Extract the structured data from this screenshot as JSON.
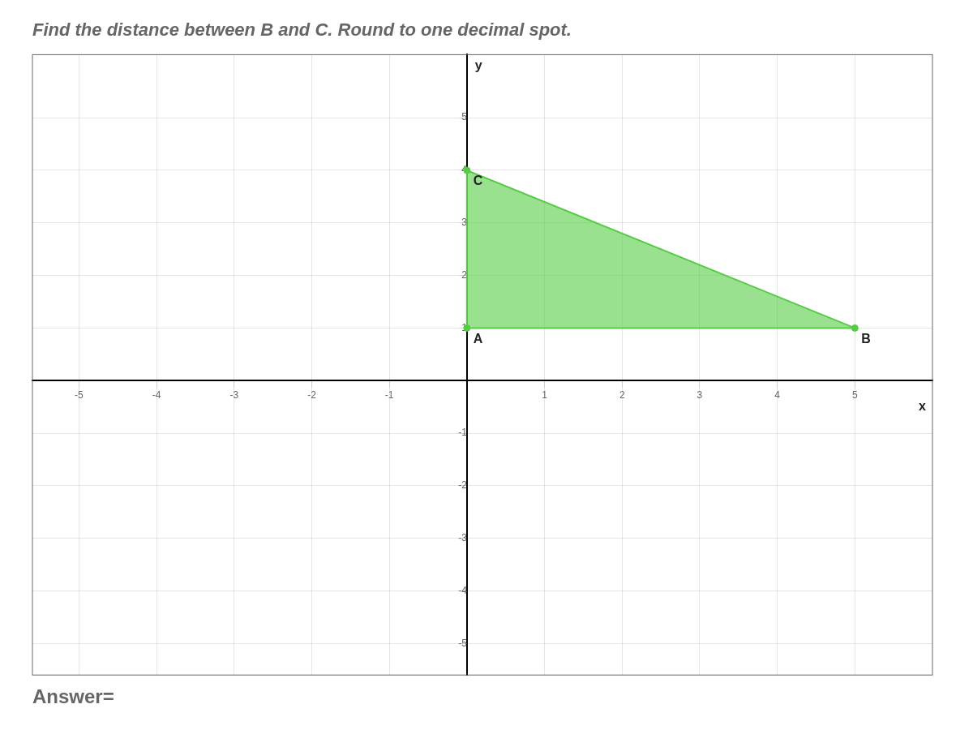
{
  "chart_data": {
    "type": "polygon",
    "title": "Find the distance between B and C. Round to one decimal spot.",
    "subtitle": "Answer=",
    "x_label": "x",
    "y_label": "y",
    "x": [
      0,
      5,
      0
    ],
    "values": [
      1,
      1,
      4
    ],
    "color": "#55cc44",
    "annotations": [
      {
        "text": "A",
        "x": 0,
        "y": 1
      },
      {
        "text": "B",
        "x": 5,
        "y": 1
      },
      {
        "text": "C",
        "x": 0,
        "y": 4
      }
    ],
    "xlim": [
      -5.6,
      6.0
    ],
    "ylim": [
      -5.6,
      6.2
    ],
    "xticks": [
      -5,
      -4,
      -3,
      -2,
      -1,
      1,
      2,
      3,
      4,
      5
    ],
    "yticks": [
      -5,
      -4,
      -3,
      -2,
      -1,
      1,
      2,
      3,
      4,
      5
    ],
    "grid": true
  }
}
